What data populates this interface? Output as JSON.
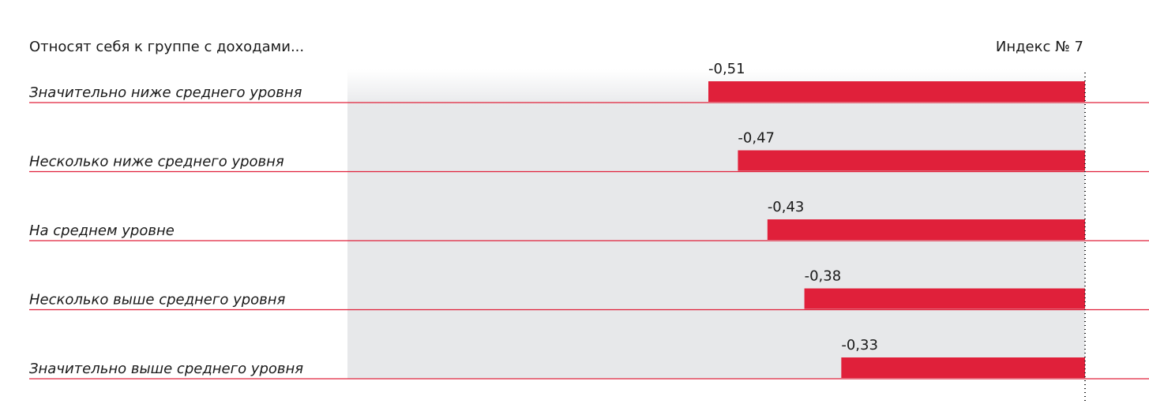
{
  "chart_data": {
    "type": "bar",
    "orientation": "horizontal",
    "y_label": "Относят себя к группе с доходами...",
    "x_label": "Индекс № 7",
    "categories": [
      "Значительно ниже среднего уровня",
      "Несколько ниже среднего уровня",
      "На среднем уровне",
      "Несколько выше среднего уровня",
      "Значительно выше среднего уровня"
    ],
    "values": [
      -0.51,
      -0.47,
      -0.43,
      -0.38,
      -0.33
    ],
    "value_labels": [
      "-0,51",
      "-0,47",
      "-0,43",
      "-0,38",
      "-0,33"
    ],
    "color": "#e0203a",
    "xlim": [
      -0.51,
      0
    ]
  }
}
